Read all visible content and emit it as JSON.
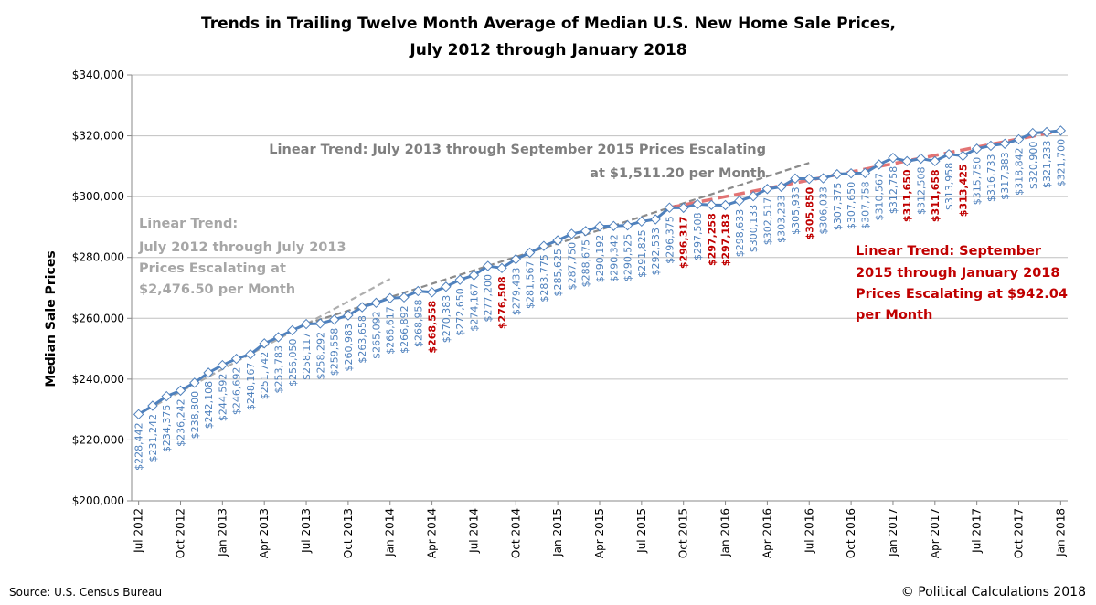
{
  "chart_data": {
    "type": "line",
    "title": "Trends in Trailing Twelve Month Average of Median U.S. New Home Sale Prices,",
    "subtitle": "July 2012 through January 2018",
    "xlabel": "",
    "ylabel": "Median Sale Prices",
    "ylim": [
      200000,
      340000
    ],
    "y_ticks": [
      200000,
      220000,
      240000,
      260000,
      280000,
      300000,
      320000,
      340000
    ],
    "y_tick_labels": [
      "$200,000",
      "$220,000",
      "$240,000",
      "$260,000",
      "$280,000",
      "$300,000",
      "$320,000",
      "$340,000"
    ],
    "x_tick_labels": [
      "Jul 2012",
      "Oct 2012",
      "Jan 2013",
      "Apr 2013",
      "Jul 2013",
      "Oct 2013",
      "Jan 2014",
      "Apr 2014",
      "Jul 2014",
      "Oct 2014",
      "Jan 2015",
      "Apr 2015",
      "Jul 2015",
      "Oct 2015",
      "Jan 2016",
      "Apr 2016",
      "Jul 2016",
      "Oct 2016",
      "Jan 2017",
      "Apr 2017",
      "Jul 2017",
      "Oct 2017",
      "Jan 2018"
    ],
    "x_tick_every_n_months": 3,
    "grid": "horizontal",
    "legend": "none",
    "start_month": "Jul 2012",
    "series": [
      {
        "name": "Trailing Twelve Month Average of Median New Home Sale Prices",
        "color": "#4f81bd",
        "marker": "diamond",
        "values": [
          228442,
          231242,
          234375,
          236242,
          238800,
          242108,
          244592,
          246692,
          248167,
          251742,
          253783,
          256050,
          258117,
          258292,
          259558,
          260983,
          263658,
          265092,
          266617,
          266892,
          268958,
          268558,
          270383,
          272650,
          274167,
          277200,
          276508,
          279433,
          281567,
          283775,
          285625,
          287750,
          288675,
          290192,
          290342,
          290525,
          291825,
          292533,
          296375,
          296317,
          297508,
          297258,
          297183,
          298633,
          300133,
          302517,
          303233,
          305933,
          305850,
          306033,
          307375,
          307650,
          307758,
          310567,
          312758,
          311650,
          312508,
          311658,
          313958,
          313425,
          315750,
          316733,
          317383,
          318842,
          320900,
          321233,
          321700
        ],
        "labels": [
          "$228,442",
          "$231,242",
          "$234,375",
          "$236,242",
          "$238,800",
          "$242,108",
          "$244,592",
          "$246,692",
          "$248,167",
          "$251,742",
          "$253,783",
          "$256,050",
          "$258,117",
          "$258,292",
          "$259,558",
          "$260,983",
          "$263,658",
          "$265,092",
          "$266,617",
          "$266,892",
          "$268,958",
          "$268,558",
          "$270,383",
          "$272,650",
          "$274,167",
          "$277,200",
          "$276,508",
          "$279,433",
          "$281,567",
          "$283,775",
          "$285,625",
          "$287,750",
          "$288,675",
          "$290,192",
          "$290,342",
          "$290,525",
          "$291,825",
          "$292,533",
          "$296,375",
          "$296,317",
          "$297,508",
          "$297,258",
          "$297,183",
          "$298,633",
          "$300,133",
          "$302,517",
          "$303,233",
          "$305,933",
          "$305,850",
          "$306,033",
          "$307,375",
          "$307,650",
          "$307,758",
          "$310,567",
          "$312,758",
          "$311,650",
          "$312,508",
          "$311,658",
          "$313,958",
          "$313,425",
          "$315,750",
          "$316,733",
          "$317,383",
          "$318,842",
          "$320,900",
          "$321,233",
          "$321,700"
        ],
        "decline_indices": [
          21,
          26,
          39,
          41,
          42,
          48,
          55,
          57,
          59
        ]
      }
    ],
    "label_colors": {
      "normal": "#4f81bd",
      "decline": "#c00000"
    },
    "trendlines": [
      {
        "name": "Linear Trend: July 2012 through July 2013",
        "color": "#a6a6a6",
        "style": "dashed",
        "start_index": 0,
        "end_index": 12,
        "extend_to_index": 18,
        "slope_per_month": 2476.5
      },
      {
        "name": "Linear Trend: July 2013 through September 2015",
        "color": "#7f7f7f",
        "style": "dashed",
        "start_index": 12,
        "end_index": 38,
        "extend_to_index": 48,
        "slope_per_month": 1511.2
      },
      {
        "name": "Linear Trend: September 2015 through January 2018",
        "color": "#e06666",
        "style": "dashed",
        "start_index": 38,
        "end_index": 66,
        "slope_per_month": 942.04
      }
    ],
    "annotations": [
      {
        "id": "trend1",
        "lines": [
          "Linear Trend:",
          "July 2012 through July 2013",
          "Prices Escalating at",
          "$2,476.50 per Month"
        ],
        "color": "#a6a6a6"
      },
      {
        "id": "trend2",
        "lines": [
          "Linear Trend: July 2013 through September 2015 Prices Escalating",
          "at $1,511.20 per Month"
        ],
        "color": "#7f7f7f"
      },
      {
        "id": "trend3",
        "lines": [
          "Linear Trend: September",
          "2015 through January 2018",
          "Prices Escalating at $942.04",
          "per Month"
        ],
        "color": "#c00000"
      }
    ]
  },
  "footer": {
    "source": "Source: U.S. Census Bureau",
    "copyright": "© Political Calculations 2018"
  }
}
